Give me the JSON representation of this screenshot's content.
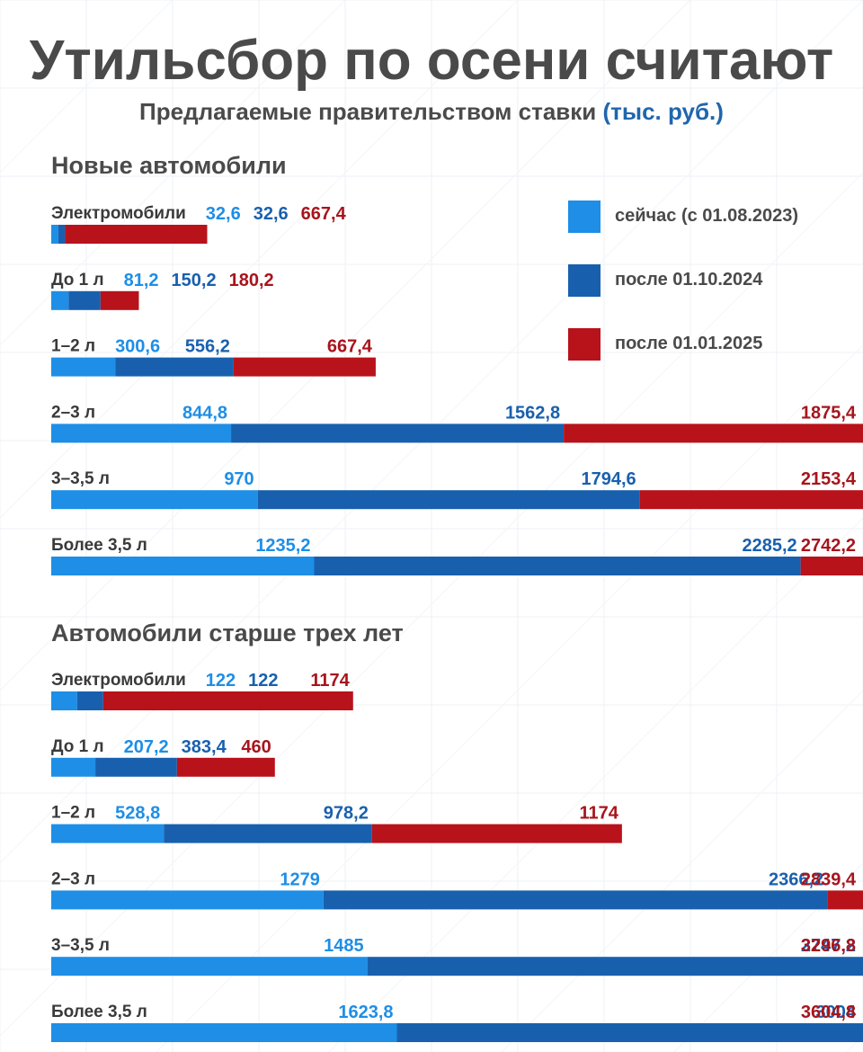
{
  "title": "Утильсбор по осени считают",
  "subtitle": "Предлагаемые правительством ставки",
  "unit": "(тыс. руб.)",
  "legend": [
    {
      "label": "сейчас (с 01.08.2023)",
      "color": "#1e8ee6"
    },
    {
      "label": "после 01.10.2024",
      "color": "#1860ae"
    },
    {
      "label": "после 01.01.2025",
      "color": "#b8121b"
    }
  ],
  "text_colors": [
    "#1e8ee6",
    "#1860ae",
    "#a8141c"
  ],
  "chart_data": [
    {
      "type": "bar",
      "title": "Новые автомобили",
      "categories": [
        "Электромобили",
        "До 1 л",
        "1–2 л",
        "2–3 л",
        "3–3,5 л",
        "Более 3,5 л"
      ],
      "series": [
        {
          "name": "сейчас (с 01.08.2023)",
          "values": [
            32.6,
            81.2,
            300.6,
            844.8,
            970,
            1235.2
          ],
          "labels": [
            "32,6",
            "81,2",
            "300,6",
            "844,8",
            "970",
            "1235,2"
          ]
        },
        {
          "name": "после 01.10.2024",
          "values": [
            32.6,
            150.2,
            556.2,
            1562.8,
            1794.6,
            2285.2
          ],
          "labels": [
            "32,6",
            "150,2",
            "556,2",
            "1562,8",
            "1794,6",
            "2285,2"
          ]
        },
        {
          "name": "после 01.01.2025",
          "values": [
            667.4,
            180.2,
            667.4,
            1875.4,
            2153.4,
            2742.2
          ],
          "labels": [
            "667,4",
            "180,2",
            "667,4",
            "1875,4",
            "2153,4",
            "2742,2"
          ]
        }
      ]
    },
    {
      "type": "bar",
      "title": "Автомобили старше трех лет",
      "categories": [
        "Электромобили",
        "До 1 л",
        "1–2 л",
        "2–3 л",
        "3–3,5 л",
        "Более 3,5 л"
      ],
      "series": [
        {
          "name": "сейчас (с 01.08.2023)",
          "values": [
            122,
            207.2,
            528.8,
            1279,
            1485,
            1623.8
          ],
          "labels": [
            "122",
            "207,2",
            "528,8",
            "1279",
            "1485",
            "1623,8"
          ]
        },
        {
          "name": "после 01.10.2024",
          "values": [
            122,
            383.4,
            978.2,
            2366.2,
            2747.2,
            3004
          ],
          "labels": [
            "122",
            "383,4",
            "978,2",
            "2366,2",
            "2747,2",
            "3004"
          ]
        },
        {
          "name": "после 01.01.2025",
          "values": [
            1174,
            460,
            1174,
            2839.4,
            3296.8,
            3604.8
          ],
          "labels": [
            "1174",
            "460",
            "1174",
            "2839,4",
            "3296,8",
            "3604,8"
          ]
        }
      ]
    }
  ]
}
